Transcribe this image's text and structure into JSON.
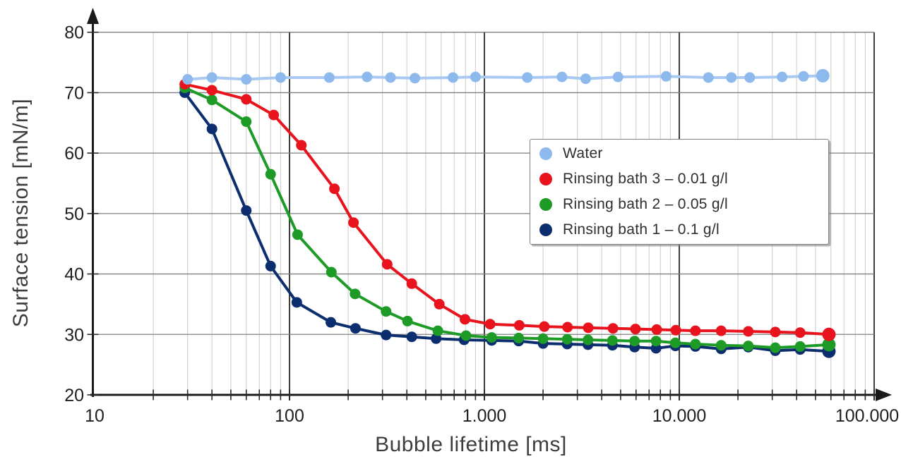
{
  "chart_data": {
    "type": "line",
    "title": "",
    "xlabel": "Bubble lifetime [ms]",
    "ylabel": "Surface tension [mN/m]",
    "x_scale": "log",
    "xlim": [
      10,
      100000
    ],
    "ylim": [
      20,
      80
    ],
    "grid": true,
    "legend_position": "upper right",
    "x_ticks": [
      {
        "value": 10,
        "label": "10"
      },
      {
        "value": 100,
        "label": "100"
      },
      {
        "value": 1000,
        "label": "1.000"
      },
      {
        "value": 10000,
        "label": "10.000"
      },
      {
        "value": 100000,
        "label": "100.000"
      }
    ],
    "y_ticks": [
      20,
      30,
      40,
      50,
      60,
      70,
      80
    ],
    "colors": {
      "grid_minor": "#cacaca",
      "grid_major": "#3d3d3d",
      "grid_horizontal": "#7f7f7f",
      "axis": "#1a1a1a"
    },
    "series": [
      {
        "name": "Water",
        "color": "#8db9ed",
        "line_color": "#a9c9f2",
        "x": [
          30,
          40,
          60,
          90,
          160,
          250,
          330,
          440,
          690,
          900,
          1660,
          2500,
          3310,
          4850,
          8560,
          14100,
          18500,
          23000,
          33700,
          43400,
          54500
        ],
        "y": [
          72.2,
          72.5,
          72.2,
          72.5,
          72.5,
          72.6,
          72.5,
          72.4,
          72.5,
          72.6,
          72.5,
          72.6,
          72.3,
          72.6,
          72.7,
          72.5,
          72.5,
          72.5,
          72.6,
          72.7,
          72.8
        ]
      },
      {
        "name": "Rinsing bath 3 – 0.01 g/l",
        "color": "#e8131c",
        "line_color": "#e8131c",
        "x": [
          29,
          40,
          60,
          83,
          115,
          170,
          213,
          317,
          424,
          587,
          795,
          1070,
          1510,
          2030,
          2670,
          3410,
          4570,
          5960,
          7660,
          9600,
          12100,
          16400,
          22600,
          31100,
          41700,
          58600
        ],
        "y": [
          71.4,
          70.4,
          68.9,
          66.3,
          61.3,
          54.1,
          48.5,
          41.6,
          38.4,
          35.0,
          32.5,
          31.7,
          31.5,
          31.3,
          31.2,
          31.1,
          31.0,
          30.9,
          30.8,
          30.7,
          30.6,
          30.6,
          30.5,
          30.4,
          30.3,
          30.0
        ]
      },
      {
        "name": "Rinsing bath 2 – 0.05 g/l",
        "color": "#1d9b26",
        "line_color": "#1d9b26",
        "x": [
          29,
          40,
          60,
          80,
          110,
          164,
          217,
          313,
          403,
          577,
          805,
          1090,
          1500,
          2000,
          2660,
          3400,
          4540,
          5900,
          7600,
          9550,
          12100,
          16400,
          22600,
          31100,
          41700,
          58600
        ],
        "y": [
          70.8,
          68.8,
          65.2,
          56.5,
          46.5,
          40.3,
          36.7,
          33.8,
          32.2,
          30.6,
          29.8,
          29.5,
          29.4,
          29.3,
          29.2,
          29.1,
          29.0,
          28.9,
          28.9,
          28.6,
          28.4,
          28.2,
          28.1,
          27.8,
          28.0,
          28.3
        ]
      },
      {
        "name": "Rinsing bath 1 – 0.1 g/l",
        "color": "#0d2e6e",
        "line_color": "#0d2e6e",
        "x": [
          29,
          40,
          60,
          80,
          109,
          163,
          218,
          313,
          424,
          565,
          787,
          1090,
          1500,
          2000,
          2660,
          3400,
          4540,
          5900,
          7600,
          9550,
          12100,
          16400,
          22600,
          31100,
          41700,
          58600
        ],
        "y": [
          70.0,
          64.0,
          50.5,
          41.3,
          35.3,
          32.0,
          31.0,
          29.9,
          29.6,
          29.3,
          29.1,
          29.0,
          28.9,
          28.5,
          28.4,
          28.3,
          28.2,
          27.9,
          27.7,
          28.1,
          28.0,
          27.6,
          27.9,
          27.3,
          27.5,
          27.2
        ]
      }
    ]
  }
}
